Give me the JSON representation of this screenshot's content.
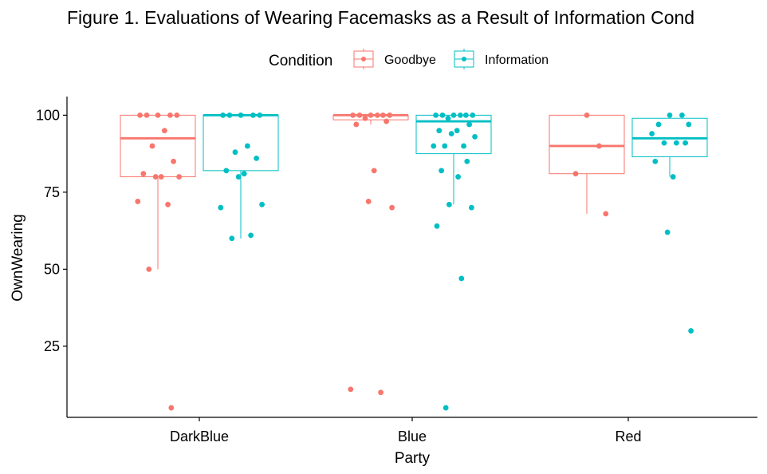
{
  "chart_data": {
    "type": "boxplot",
    "title": "Figure 1. Evaluations of Wearing Facemasks as a Result of Information Cond",
    "xlabel": "Party",
    "ylabel": "OwnWearing",
    "categories": [
      "DarkBlue",
      "Blue",
      "Red"
    ],
    "yticks": [
      25,
      50,
      75,
      100
    ],
    "ylim": [
      1,
      104
    ],
    "grid": false,
    "legend": {
      "title": "Condition",
      "position": "top"
    },
    "series": [
      {
        "name": "Goodbye",
        "color": "#F8766D",
        "boxes": [
          {
            "category": "DarkBlue",
            "q1": 80,
            "median": 92.5,
            "q3": 100,
            "whisker_low": 50,
            "whisker_high": 100
          },
          {
            "category": "Blue",
            "q1": 98.5,
            "median": 100,
            "q3": 100,
            "whisker_low": 97,
            "whisker_high": 100
          },
          {
            "category": "Red",
            "q1": 81,
            "median": 90,
            "q3": 100,
            "whisker_low": 68,
            "whisker_high": 100
          }
        ],
        "points": [
          {
            "category": "DarkBlue",
            "y": [
              100,
              100,
              100,
              100,
              100,
              95,
              90,
              85,
              81,
              80,
              80,
              80,
              72,
              71,
              50,
              5
            ]
          },
          {
            "category": "Blue",
            "y": [
              100,
              100,
              100,
              100,
              100,
              100,
              99,
              98,
              97,
              82,
              72,
              70,
              11,
              10
            ]
          },
          {
            "category": "Red",
            "y": [
              100,
              90,
              81,
              68
            ]
          }
        ]
      },
      {
        "name": "Information",
        "color": "#00BFC4",
        "boxes": [
          {
            "category": "DarkBlue",
            "q1": 82,
            "median": 100,
            "q3": 100,
            "whisker_low": 60,
            "whisker_high": 100
          },
          {
            "category": "Blue",
            "q1": 87.5,
            "median": 98,
            "q3": 100,
            "whisker_low": 71,
            "whisker_high": 100
          },
          {
            "category": "Red",
            "q1": 86.5,
            "median": 92.5,
            "q3": 99,
            "whisker_low": 80,
            "whisker_high": 100
          }
        ],
        "points": [
          {
            "category": "DarkBlue",
            "y": [
              100,
              100,
              100,
              100,
              100,
              90,
              88,
              86,
              82,
              81,
              80,
              71,
              70,
              61,
              60
            ]
          },
          {
            "category": "Blue",
            "y": [
              100,
              100,
              100,
              100,
              100,
              100,
              99,
              97,
              95,
              95,
              94,
              93,
              90,
              90,
              90,
              85,
              82,
              80,
              71,
              70,
              64,
              47,
              5
            ]
          },
          {
            "category": "Red",
            "y": [
              100,
              100,
              97,
              97,
              94,
              91,
              91,
              91,
              85,
              80,
              62,
              30
            ]
          }
        ]
      }
    ]
  }
}
